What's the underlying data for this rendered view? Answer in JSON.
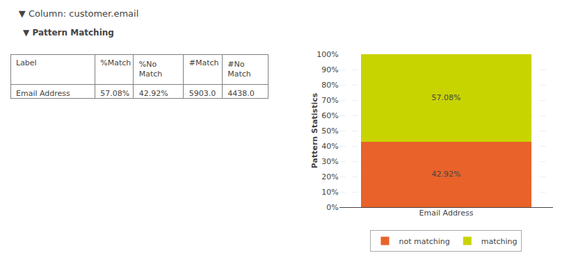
{
  "chart_data": [
    {
      "type": "table",
      "title": "▼ Column: customer.email",
      "subtitle": "▼ Pattern Matching",
      "headers": [
        "Label",
        "%Match",
        "%No Match",
        "#Match",
        "#No Match"
      ],
      "rows": [
        [
          "Email Address",
          "57.08%",
          "42.92%",
          "5903.0",
          "4438.0"
        ]
      ]
    },
    {
      "type": "bar",
      "stacked": true,
      "categories": [
        "Email Address"
      ],
      "series": [
        {
          "name": "not matching",
          "color": "#E8622A",
          "values": [
            42.92
          ],
          "value_labels": [
            "42.92%"
          ]
        },
        {
          "name": "matching",
          "color": "#C8D400",
          "values": [
            57.08
          ],
          "value_labels": [
            "57.08%"
          ]
        }
      ],
      "data_labels": true,
      "ylabel": "Pattern Statistics",
      "ylim": [
        0,
        100
      ],
      "yticks": [
        {
          "value": 0,
          "label": "0%"
        },
        {
          "value": 10,
          "label": "10%"
        },
        {
          "value": 20,
          "label": "20%"
        },
        {
          "value": 30,
          "label": "30%"
        },
        {
          "value": 40,
          "label": "40%"
        },
        {
          "value": 50,
          "label": "50%"
        },
        {
          "value": 60,
          "label": "60%"
        },
        {
          "value": 70,
          "label": "70%"
        },
        {
          "value": 80,
          "label": "80%"
        },
        {
          "value": 90,
          "label": "90%"
        },
        {
          "value": 100,
          "label": "100%"
        }
      ],
      "grid": true,
      "legend": "bottom"
    }
  ]
}
